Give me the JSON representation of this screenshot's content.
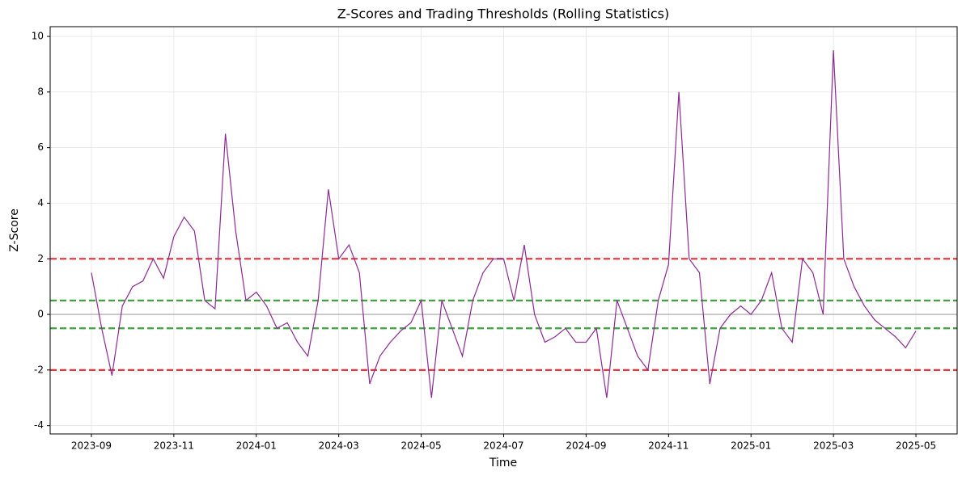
{
  "chart_data": {
    "type": "line",
    "title": "Z-Scores and Trading Thresholds (Rolling Statistics)",
    "x_label": "Time",
    "y_label": "Z-Score",
    "x": [
      "2023-09",
      "2023-09",
      "2023-09",
      "2023-09",
      "2023-10",
      "2023-10",
      "2023-10",
      "2023-10",
      "2023-11",
      "2023-11",
      "2023-11",
      "2023-11",
      "2023-12",
      "2023-12",
      "2023-12",
      "2023-12",
      "2024-01",
      "2024-01",
      "2024-01",
      "2024-01",
      "2024-02",
      "2024-02",
      "2024-02",
      "2024-02",
      "2024-03",
      "2024-03",
      "2024-03",
      "2024-03",
      "2024-04",
      "2024-04",
      "2024-04",
      "2024-04",
      "2024-05",
      "2024-05",
      "2024-05",
      "2024-05",
      "2024-06",
      "2024-06",
      "2024-06",
      "2024-06",
      "2024-07",
      "2024-07",
      "2024-07",
      "2024-07",
      "2024-08",
      "2024-08",
      "2024-08",
      "2024-08",
      "2024-09",
      "2024-09",
      "2024-09",
      "2024-09",
      "2024-10",
      "2024-10",
      "2024-10",
      "2024-10",
      "2024-11",
      "2024-11",
      "2024-11",
      "2024-11",
      "2024-12",
      "2024-12",
      "2024-12",
      "2024-12",
      "2025-01",
      "2025-01",
      "2025-01",
      "2025-01",
      "2025-02",
      "2025-02",
      "2025-02",
      "2025-02",
      "2025-03",
      "2025-03",
      "2025-03",
      "2025-03",
      "2025-04",
      "2025-04",
      "2025-04",
      "2025-04",
      "2025-05"
    ],
    "series": [
      {
        "name": "Z-Score",
        "color": "#8b2a93",
        "values": [
          1.5,
          -0.5,
          -2.2,
          0.3,
          1.0,
          1.2,
          2.0,
          1.3,
          2.8,
          3.5,
          3.0,
          0.5,
          0.2,
          6.5,
          3.0,
          0.5,
          0.8,
          0.3,
          -0.5,
          -0.3,
          -1.0,
          -1.5,
          0.5,
          4.5,
          2.0,
          2.5,
          1.5,
          -2.5,
          -1.5,
          -1.0,
          -0.6,
          -0.3,
          0.5,
          -3.0,
          0.5,
          -0.5,
          -1.5,
          0.5,
          1.5,
          2.0,
          2.0,
          0.5,
          2.5,
          0.0,
          -1.0,
          -0.8,
          -0.5,
          -1.0,
          -1.0,
          -0.5,
          -3.0,
          0.5,
          -0.5,
          -1.5,
          -2.0,
          0.5,
          1.8,
          8.0,
          2.0,
          1.5,
          -2.5,
          -0.5,
          0.0,
          0.3,
          0.0,
          0.5,
          1.5,
          -0.5,
          -1.0,
          2.0,
          1.5,
          0.0,
          9.5,
          2.0,
          1.0,
          0.3,
          -0.2,
          -0.5,
          -0.8,
          -1.2,
          -0.6
        ]
      }
    ],
    "hlines": [
      {
        "value": 2,
        "color": "#e8262b",
        "dashed": true
      },
      {
        "value": -2,
        "color": "#e8262b",
        "dashed": true
      },
      {
        "value": 0.5,
        "color": "#2a9a2a",
        "dashed": true
      },
      {
        "value": -0.5,
        "color": "#2a9a2a",
        "dashed": true
      },
      {
        "value": 0,
        "color": "#999999",
        "dashed": false
      }
    ],
    "xlim": [
      "2023-08",
      "2025-06"
    ],
    "xticks": [
      "2023-09",
      "2023-11",
      "2024-01",
      "2024-03",
      "2024-05",
      "2024-07",
      "2024-09",
      "2024-11",
      "2025-01",
      "2025-03",
      "2025-05"
    ],
    "ylim": [
      -4.3,
      10.35
    ],
    "yticks": [
      -4,
      -2,
      0,
      2,
      4,
      6,
      8,
      10
    ],
    "grid": true
  }
}
